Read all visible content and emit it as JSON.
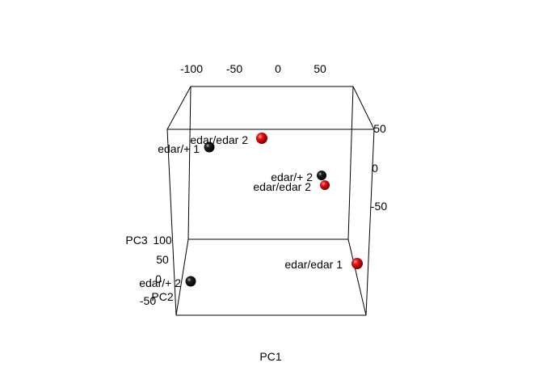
{
  "chart_data": {
    "type": "scatter",
    "dimensions": 3,
    "xlabel": "PC1",
    "ylabel": "PC2",
    "zlabel": "PC3",
    "top_axis_ticks": [
      "-100",
      "-50",
      "0",
      "50"
    ],
    "right_axis_ticks": [
      "50",
      "0",
      "-50"
    ],
    "left_axis_ticks": [
      "100",
      "50",
      "0",
      "-50"
    ],
    "points": [
      {
        "label": "edar/edar 2",
        "color": "#e00000"
      },
      {
        "label": "edar/+ 1",
        "color": "#000000"
      },
      {
        "label": "edar/+ 2",
        "color": "#000000"
      },
      {
        "label": "edar/edar 2",
        "color": "#e00000"
      },
      {
        "label": "edar/edar 1",
        "color": "#e00000"
      },
      {
        "label": "edar/+ 2",
        "color": "#000000"
      }
    ]
  }
}
